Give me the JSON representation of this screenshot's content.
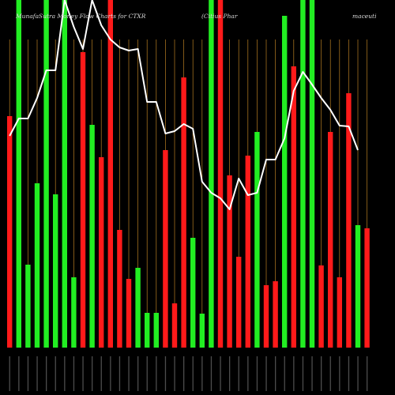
{
  "header": {
    "left": "MunafaSutra  Money Flow Charts for CTXR",
    "middle": "(Citius Phar",
    "right": "maceuti"
  },
  "colors": {
    "background": "#000000",
    "up": "#22ee22",
    "down": "#ff1a1a",
    "guide": "#d9962a",
    "line": "#ffffff",
    "tick": "#8a8a8a"
  },
  "chart_data": {
    "type": "bar",
    "ylim": [
      0,
      440
    ],
    "grid": false,
    "bars": [
      {
        "color": "red",
        "value": 293
      },
      {
        "color": "green",
        "value": 440
      },
      {
        "color": "green",
        "value": 105
      },
      {
        "color": "green",
        "value": 208
      },
      {
        "color": "green",
        "value": 440
      },
      {
        "color": "green",
        "value": 194
      },
      {
        "color": "green",
        "value": 440
      },
      {
        "color": "green",
        "value": 89
      },
      {
        "color": "red",
        "value": 374
      },
      {
        "color": "green",
        "value": 282
      },
      {
        "color": "red",
        "value": 241
      },
      {
        "color": "red",
        "value": 440
      },
      {
        "color": "red",
        "value": 149
      },
      {
        "color": "red",
        "value": 87
      },
      {
        "color": "green",
        "value": 101
      },
      {
        "color": "green",
        "value": 44
      },
      {
        "color": "green",
        "value": 44
      },
      {
        "color": "red",
        "value": 250
      },
      {
        "color": "red",
        "value": 56
      },
      {
        "color": "red",
        "value": 342
      },
      {
        "color": "green",
        "value": 139
      },
      {
        "color": "green",
        "value": 43
      },
      {
        "color": "green",
        "value": 440
      },
      {
        "color": "red",
        "value": 440
      },
      {
        "color": "red",
        "value": 218
      },
      {
        "color": "red",
        "value": 115
      },
      {
        "color": "red",
        "value": 243
      },
      {
        "color": "green",
        "value": 273
      },
      {
        "color": "red",
        "value": 79
      },
      {
        "color": "red",
        "value": 84
      },
      {
        "color": "green",
        "value": 420
      },
      {
        "color": "red",
        "value": 356
      },
      {
        "color": "green",
        "value": 440
      },
      {
        "color": "green",
        "value": 440
      },
      {
        "color": "red",
        "value": 104
      },
      {
        "color": "red",
        "value": 273
      },
      {
        "color": "red",
        "value": 89
      },
      {
        "color": "red",
        "value": 322
      },
      {
        "color": "green",
        "value": 155
      },
      {
        "color": "red",
        "value": 151
      }
    ],
    "line": [
      268,
      290,
      290,
      316,
      351,
      351,
      440,
      406,
      378,
      440,
      408,
      390,
      380,
      376,
      378,
      311,
      311,
      271,
      274,
      283,
      277,
      210,
      196,
      189,
      175,
      214,
      193,
      196,
      238,
      238,
      265,
      325,
      349,
      333,
      316,
      301,
      281,
      280,
      250
    ]
  }
}
